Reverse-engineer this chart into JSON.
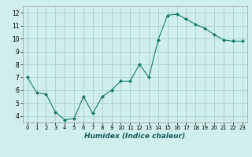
{
  "x": [
    0,
    1,
    2,
    3,
    4,
    5,
    6,
    7,
    8,
    9,
    10,
    11,
    12,
    13,
    14,
    15,
    16,
    17,
    18,
    19,
    20,
    21,
    22,
    23
  ],
  "y": [
    7.0,
    5.8,
    5.7,
    4.3,
    3.7,
    3.8,
    5.5,
    4.2,
    5.5,
    6.0,
    6.7,
    6.7,
    8.0,
    7.0,
    9.9,
    11.8,
    11.9,
    11.5,
    11.1,
    10.8,
    10.3,
    9.9,
    9.8,
    9.8
  ],
  "xlabel": "Humidex (Indice chaleur)",
  "ylim": [
    3.5,
    12.5
  ],
  "xlim": [
    -0.5,
    23.5
  ],
  "line_color": "#1a7a6e",
  "marker_color": "#1a7a6e",
  "bg_color": "#d0eeeb",
  "grid_color": "#a0ccc8",
  "yticks": [
    4,
    5,
    6,
    7,
    8,
    9,
    10,
    11,
    12
  ],
  "xtick_labels": [
    "0",
    "1",
    "2",
    "3",
    "4",
    "5",
    "6",
    "7",
    "8",
    "9",
    "10",
    "11",
    "12",
    "13",
    "14",
    "15",
    "16",
    "17",
    "18",
    "19",
    "20",
    "21",
    "22",
    "23"
  ]
}
